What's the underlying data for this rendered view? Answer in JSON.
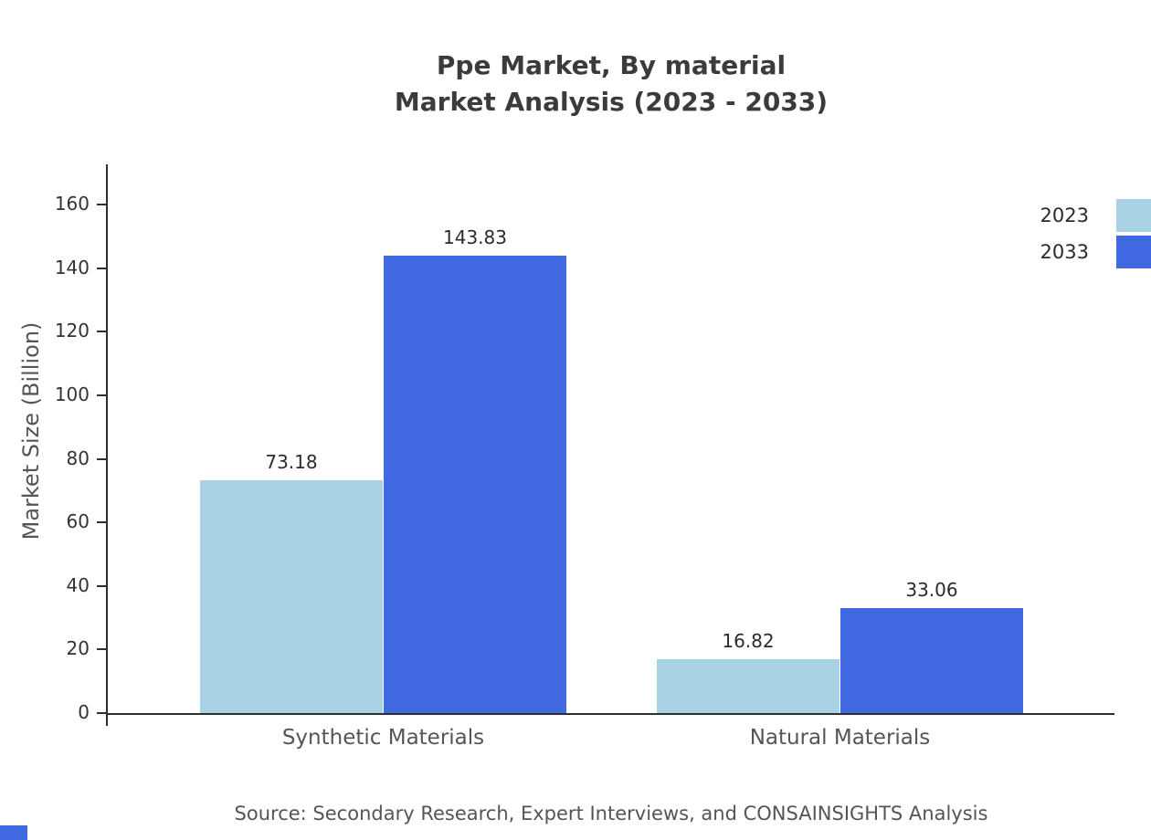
{
  "title": {
    "line1": "Ppe Market, By material",
    "line2": "Market Analysis (2023 - 2033)"
  },
  "ylabel": "Market Size (Billion)",
  "source": "Source: Secondary Research, Expert Interviews, and CONSAINSIGHTS Analysis",
  "legend": [
    {
      "label": "2023",
      "color": "#a9d3e5"
    },
    {
      "label": "2033",
      "color": "#4169e1"
    }
  ],
  "colors": {
    "series_2023": "#a9d3e5",
    "series_2033": "#4169e1",
    "axis": "#2f2f2f"
  },
  "chart_data": {
    "type": "bar",
    "title": "Ppe Market, By material Market Analysis (2023 - 2033)",
    "categories": [
      "Synthetic Materials",
      "Natural Materials"
    ],
    "series": [
      {
        "name": "2023",
        "color": "#a9d3e5",
        "values": [
          73.18,
          16.82
        ]
      },
      {
        "name": "2033",
        "color": "#4169e1",
        "values": [
          143.83,
          33.06
        ]
      }
    ],
    "value_labels": [
      [
        "73.18",
        "16.82"
      ],
      [
        "143.83",
        "33.06"
      ]
    ],
    "xlabel": "",
    "ylabel": "Market Size (Billion)",
    "yticks": [
      0,
      20,
      40,
      60,
      80,
      100,
      120,
      140,
      160
    ],
    "ylim": [
      0,
      172
    ],
    "grid": false,
    "legend_position": "top-right"
  }
}
